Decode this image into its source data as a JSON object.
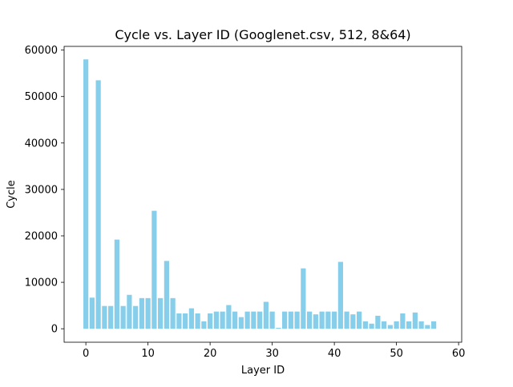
{
  "chart_data": {
    "type": "bar",
    "title": "Cycle vs. Layer ID (Googlenet.csv, 512, 8&64)",
    "xlabel": "Layer ID",
    "ylabel": "Cycle",
    "bar_color": "#87ceeb",
    "xlim": [
      -3.5,
      60.5
    ],
    "ylim": [
      -2900,
      60800
    ],
    "xticks": [
      0,
      10,
      20,
      30,
      40,
      50,
      60
    ],
    "xtick_labels": [
      "0",
      "10",
      "20",
      "30",
      "40",
      "50",
      "60"
    ],
    "yticks": [
      0,
      10000,
      20000,
      30000,
      40000,
      50000,
      60000
    ],
    "ytick_labels": [
      "0",
      "10000",
      "20000",
      "30000",
      "40000",
      "50000",
      "60000"
    ],
    "grid": false,
    "legend": "none",
    "x": [
      0,
      1,
      2,
      3,
      4,
      5,
      6,
      7,
      8,
      9,
      10,
      11,
      12,
      13,
      14,
      15,
      16,
      17,
      18,
      19,
      20,
      21,
      22,
      23,
      24,
      25,
      26,
      27,
      28,
      29,
      30,
      31,
      32,
      33,
      34,
      35,
      36,
      37,
      38,
      39,
      40,
      41,
      42,
      43,
      44,
      45,
      46,
      47,
      48,
      49,
      50,
      51,
      52,
      53,
      54,
      55,
      56
    ],
    "values": [
      58000,
      6700,
      53500,
      4900,
      4900,
      19200,
      4900,
      7300,
      4900,
      6600,
      6600,
      25400,
      6600,
      14600,
      6600,
      3300,
      3300,
      4400,
      3300,
      1600,
      3300,
      3700,
      3700,
      5100,
      3700,
      2500,
      3700,
      3700,
      3700,
      5800,
      3700,
      200,
      3700,
      3700,
      3700,
      13000,
      3700,
      3100,
      3700,
      3700,
      3700,
      14400,
      3700,
      3100,
      3700,
      1600,
      1100,
      2800,
      1600,
      800,
      1600,
      3300,
      1600,
      3500,
      1600,
      800,
      1600
    ]
  }
}
